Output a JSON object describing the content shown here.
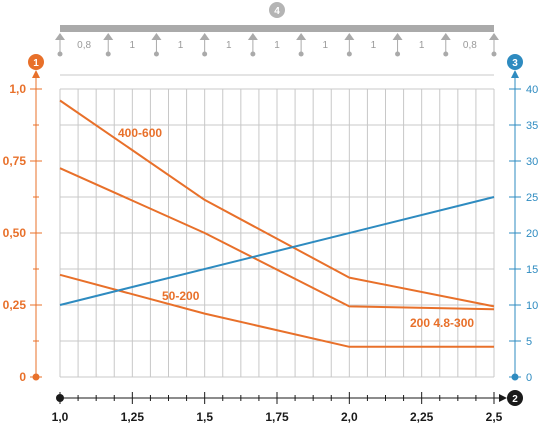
{
  "chart_data": {
    "type": "line",
    "badges": {
      "left_axis": "1",
      "bottom_axis": "2",
      "right_axis": "3",
      "beam": "4"
    },
    "colors": {
      "orange": "#e8702a",
      "blue": "#2e8bc0",
      "grid": "#c8c8c8",
      "beam": "#aaaaaa",
      "axis": "#1a1a1a"
    },
    "x_ticks": [
      "1,0",
      "1,25",
      "1,5",
      "1,75",
      "2,0",
      "2,25",
      "2,5"
    ],
    "x_tick_values": [
      1.0,
      1.25,
      1.5,
      1.75,
      2.0,
      2.25,
      2.5
    ],
    "xlim": [
      1.0,
      2.5
    ],
    "left_ticks": [
      "0",
      "0,25",
      "0,50",
      "0,75",
      "1,0"
    ],
    "left_tick_values": [
      0,
      0.25,
      0.5,
      0.75,
      1.0
    ],
    "ylim_left": [
      0,
      1.0
    ],
    "right_ticks": [
      "0",
      "5",
      "10",
      "15",
      "20",
      "25",
      "30",
      "35",
      "40"
    ],
    "right_tick_values": [
      0,
      5,
      10,
      15,
      20,
      25,
      30,
      35,
      40
    ],
    "ylim_right": [
      0,
      40
    ],
    "span_labels": [
      "0,8",
      "1",
      "1",
      "1",
      "1",
      "1",
      "1",
      "1",
      "0,8"
    ],
    "grid": true,
    "series": [
      {
        "name": "400-600",
        "axis": "left",
        "color": "#e8702a",
        "x": [
          1.0,
          1.5,
          2.0,
          2.5
        ],
        "y": [
          0.96,
          0.615,
          0.345,
          0.245
        ]
      },
      {
        "name": "200 4.8-300",
        "axis": "left",
        "color": "#e8702a",
        "x": [
          1.0,
          1.5,
          2.0,
          2.5
        ],
        "y": [
          0.725,
          0.5,
          0.245,
          0.235
        ]
      },
      {
        "name": "50-200",
        "axis": "left",
        "color": "#e8702a",
        "x": [
          1.0,
          1.5,
          2.0,
          2.5
        ],
        "y": [
          0.355,
          0.22,
          0.105,
          0.105
        ]
      },
      {
        "axis": "right",
        "color": "#2e8bc0",
        "x": [
          1.0,
          2.5
        ],
        "y": [
          10,
          25
        ]
      }
    ]
  }
}
